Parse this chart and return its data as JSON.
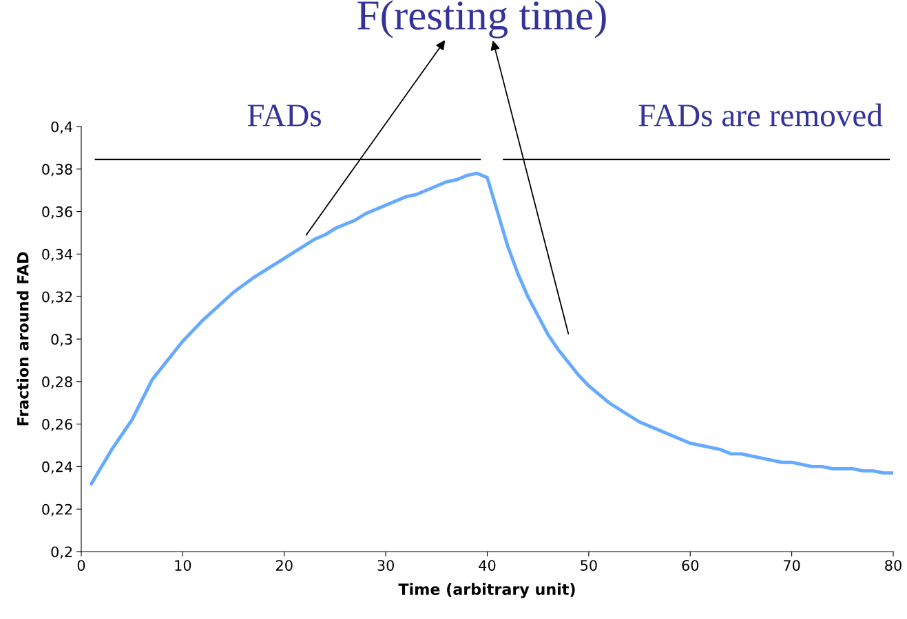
{
  "chart_data": {
    "type": "line",
    "title": "F(resting time)",
    "xlabel": "Time (arbitrary unit)",
    "ylabel": "Fraction around FAD",
    "annotations": [
      "FADs",
      "FADs are removed"
    ],
    "x": [
      1,
      3,
      5,
      7,
      10,
      12,
      15,
      17,
      20,
      23,
      24,
      25,
      27,
      28,
      32,
      33,
      36,
      37,
      38,
      39,
      40,
      41,
      42,
      43,
      44,
      46,
      47,
      49,
      50,
      52,
      55,
      60,
      63,
      64,
      65,
      69,
      70,
      72,
      73,
      74,
      76,
      77,
      78,
      79,
      80
    ],
    "series": [
      {
        "color": "#66aaff",
        "values": [
          0.232,
          0.248,
          0.262,
          0.281,
          0.299,
          0.309,
          0.322,
          0.329,
          0.338,
          0.347,
          0.349,
          0.352,
          0.356,
          0.359,
          0.367,
          0.368,
          0.374,
          0.375,
          0.377,
          0.378,
          0.376,
          0.36,
          0.344,
          0.331,
          0.32,
          0.302,
          0.295,
          0.283,
          0.278,
          0.27,
          0.261,
          0.251,
          0.248,
          0.246,
          0.246,
          0.242,
          0.242,
          0.24,
          0.24,
          0.239,
          0.239,
          0.238,
          0.238,
          0.237,
          0.237
        ]
      },
      {
        "color": "#000000",
        "x": [
          1.4,
          39.3
        ],
        "values": [
          0.3845,
          0.3845
        ]
      },
      {
        "color": "#000000",
        "x": [
          41.6,
          79.6
        ],
        "values": [
          0.3845,
          0.3845
        ]
      }
    ],
    "xlim": [
      0,
      80
    ],
    "xticks": [
      0,
      10,
      20,
      30,
      40,
      50,
      60,
      70,
      80
    ],
    "ylim": [
      0.2,
      0.4
    ],
    "yticks": [
      {
        "value": 0.2,
        "label": "0,2"
      },
      {
        "value": 0.22,
        "label": "0,22"
      },
      {
        "value": 0.24,
        "label": "0,24"
      },
      {
        "value": 0.26,
        "label": "0,26"
      },
      {
        "value": 0.28,
        "label": "0,28"
      },
      {
        "value": 0.3,
        "label": "0,3"
      },
      {
        "value": 0.32,
        "label": "0,32"
      },
      {
        "value": 0.34,
        "label": "0,34"
      },
      {
        "value": 0.36,
        "label": "0,36"
      },
      {
        "value": 0.38,
        "label": "0,38"
      },
      {
        "value": 0.4,
        "label": "0,4"
      }
    ],
    "grid": false,
    "legend": false,
    "marker": "none",
    "line_style": "solid"
  }
}
